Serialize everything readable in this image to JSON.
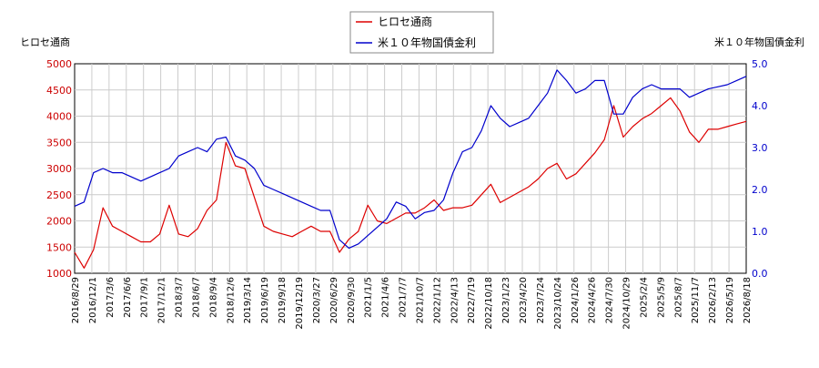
{
  "chart_data": {
    "type": "line",
    "left_axis_label": "ヒロセ通商",
    "right_axis_label": "米１０年物国債金利",
    "left_ylim": [
      1000,
      5000
    ],
    "left_ticks": [
      1000,
      1500,
      2000,
      2500,
      3000,
      3500,
      4000,
      4500,
      5000
    ],
    "right_ylim": [
      0.0,
      5.0
    ],
    "right_ticks": [
      "0.0",
      "1.0",
      "2.0",
      "3.0",
      "4.0",
      "5.0"
    ],
    "x_ticks": [
      "2016/8/29",
      "2016/12/1",
      "2017/3/6",
      "2017/6/6",
      "2017/9/1",
      "2017/12/1",
      "2018/3/7",
      "2018/6/7",
      "2018/9/4",
      "2018/12/6",
      "2019/3/14",
      "2019/6/19",
      "2019/9/18",
      "2019/12/19",
      "2020/3/27",
      "2020/6/29",
      "2020/9/30",
      "2021/1/5",
      "2021/4/6",
      "2021/7/7",
      "2021/10/7",
      "2022/1/12",
      "2022/4/13",
      "2022/7/19",
      "2022/10/18",
      "2023/1/23",
      "2023/4/20",
      "2023/7/24",
      "2023/10/24",
      "2024/1/26",
      "2024/4/26",
      "2024/7/30",
      "2024/10/29",
      "2025/2/4",
      "2025/5/9",
      "2025/8/7",
      "2025/11/7",
      "2026/2/13",
      "2026/5/19",
      "2026/8/18"
    ],
    "grid": true,
    "legend_position": "top-center",
    "series": [
      {
        "name": "ヒロセ通商",
        "axis": "left",
        "color": "#dd0000",
        "values": [
          1400,
          1100,
          1450,
          2250,
          1900,
          1800,
          1700,
          1600,
          1600,
          1750,
          2300,
          1750,
          1700,
          1850,
          2200,
          2400,
          3500,
          3050,
          3000,
          2450,
          1900,
          1800,
          1750,
          1700,
          1800,
          1900,
          1800,
          1800,
          1400,
          1650,
          1800,
          2300,
          2000,
          1950,
          2050,
          2150,
          2150,
          2250,
          2400,
          2200,
          2250,
          2250,
          2300,
          2500,
          2700,
          2350,
          2450,
          2550,
          2650,
          2800,
          3000,
          3100,
          2800,
          2900,
          3100,
          3300,
          3550,
          4200,
          3600,
          3800,
          3950,
          4050,
          4200,
          4350,
          4100,
          3700,
          3500,
          3750,
          3750,
          3800,
          3850,
          3900
        ]
      },
      {
        "name": "米１０年物国債金利",
        "axis": "right",
        "color": "#0000cc",
        "values": [
          1.6,
          1.7,
          2.4,
          2.5,
          2.4,
          2.4,
          2.3,
          2.2,
          2.3,
          2.4,
          2.5,
          2.8,
          2.9,
          3.0,
          2.9,
          3.2,
          3.25,
          2.8,
          2.7,
          2.5,
          2.1,
          2.0,
          1.9,
          1.8,
          1.7,
          1.6,
          1.5,
          1.5,
          0.8,
          0.6,
          0.7,
          0.9,
          1.1,
          1.3,
          1.7,
          1.6,
          1.3,
          1.45,
          1.5,
          1.75,
          2.4,
          2.9,
          3.0,
          3.4,
          4.0,
          3.7,
          3.5,
          3.6,
          3.7,
          4.0,
          4.3,
          4.85,
          4.6,
          4.3,
          4.4,
          4.6,
          4.6,
          3.8,
          3.8,
          4.2,
          4.4,
          4.5,
          4.4,
          4.4,
          4.4,
          4.2,
          4.3,
          4.4,
          4.45,
          4.5,
          4.6,
          4.7
        ]
      }
    ]
  }
}
